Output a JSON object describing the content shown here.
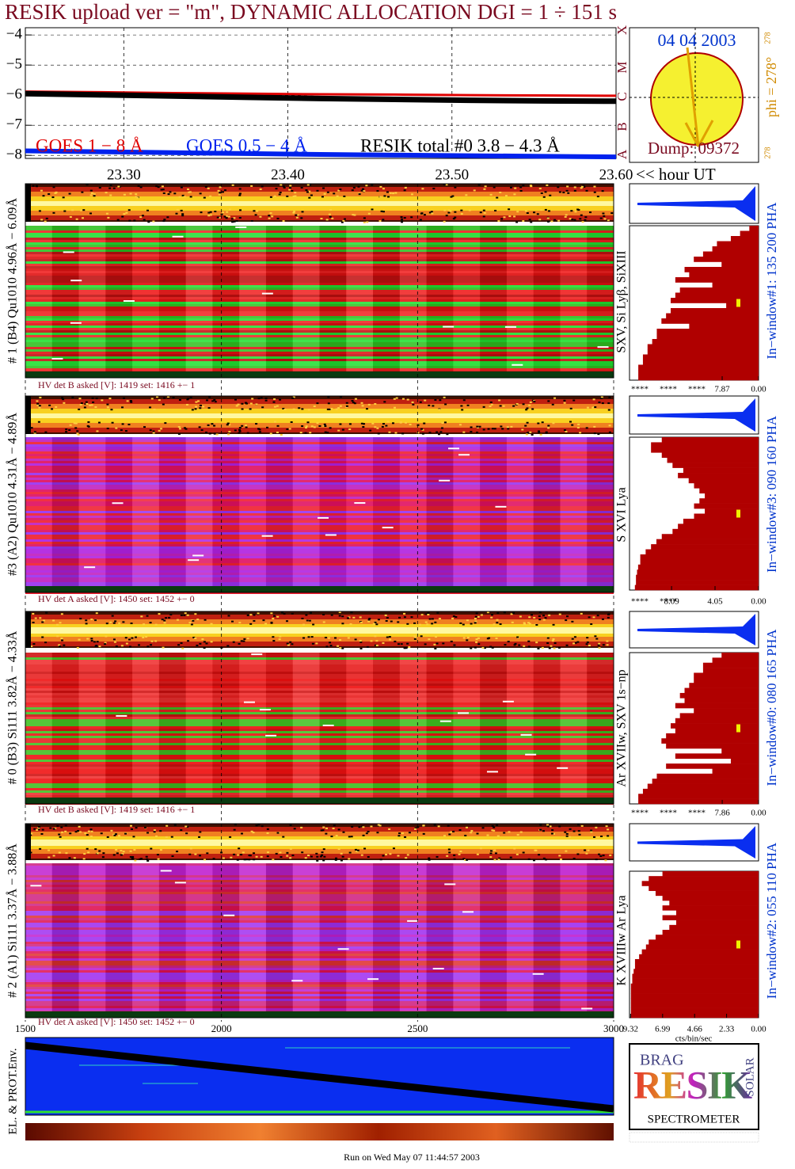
{
  "title": "RESIK upload ver = \"m\", DYNAMIC ALLOCATION  DGI =   1 ÷ 151 s",
  "chart_data": [
    {
      "type": "line",
      "x": [
        23.24,
        23.285,
        23.33,
        23.375,
        23.42,
        23.465,
        23.51,
        23.555,
        23.6
      ],
      "xlim": [
        23.24,
        23.6
      ],
      "xticks": [
        {
          "value": 23.3,
          "label": "23.30"
        },
        {
          "value": 23.4,
          "label": "23.40"
        },
        {
          "value": 23.5,
          "label": "23.50"
        },
        {
          "value": 23.6,
          "label": "23.60"
        }
      ],
      "x_label": "<< hour UT",
      "ylim": [
        -3.76,
        -8.1
      ],
      "yticks": [
        {
          "value": -4,
          "label": "−4"
        },
        {
          "value": -5,
          "label": "−5"
        },
        {
          "value": -6,
          "label": "−6"
        },
        {
          "value": -7,
          "label": "−7"
        },
        {
          "value": -8,
          "label": "−8"
        }
      ],
      "grid": true,
      "series": [
        {
          "name": "GOES 1 − 8 Å",
          "color": "#e00000",
          "values": [
            -5.88,
            -5.9,
            -5.93,
            -5.95,
            -5.97,
            -5.98,
            -6.0,
            -6.01,
            -6.02
          ]
        },
        {
          "name": "GOES 0.5 − 4 Å",
          "color": "#0022ee",
          "values": [
            -7.85,
            -7.88,
            -7.91,
            -7.94,
            -7.97,
            -7.99,
            -8.01,
            -8.03,
            -8.05
          ]
        },
        {
          "name": "RESIK total #0  3.8 − 4.3 Å",
          "color": "#000000",
          "values": [
            -5.95,
            -5.99,
            -6.03,
            -6.07,
            -6.11,
            -6.14,
            -6.17,
            -6.19,
            -6.2
          ]
        }
      ]
    },
    {
      "type": "spectrogram",
      "detector_label": "# 1 (B4) Qu1010 4.96Å − 6.09Å",
      "hv_label": "HV det B asked [V]:  1419 set:  1416 +−   1",
      "lines_label": "SXV, Si Lyβ, SiXIII",
      "window_label": "In−window#1:  135 200 PHA",
      "colors": [
        "#e01010",
        "#f02020",
        "#30c020",
        "#20e030",
        "#c01010"
      ],
      "profile": {
        "type": "bar",
        "color": "#b00000",
        "xlim": [
          27.9,
          0
        ],
        "values": [
          2,
          4,
          6,
          9,
          10,
          12,
          14,
          8,
          16,
          15,
          18,
          10,
          17,
          18,
          19,
          7,
          19,
          20,
          21,
          15,
          22,
          22,
          23,
          24,
          24,
          25,
          25,
          26,
          26,
          26
        ],
        "xticks": [
          {
            "value": 7.87,
            "label": "7.87"
          },
          {
            "value": 0,
            "label": "0.00"
          }
        ],
        "overflow_tick_labels": [
          "****",
          "****",
          "****"
        ]
      }
    },
    {
      "type": "spectrogram",
      "detector_label": "#3 (A2) Qu1010  4.31Å − 4.89Å",
      "hv_label": "HV det A asked [V]:  1450 set:  1452 +−   0",
      "lines_label": "S XVI Lya",
      "window_label": "In−window#3:  090 160 PHA",
      "colors": [
        "#b020e0",
        "#9a30f0",
        "#e01060",
        "#c020c0",
        "#f02030"
      ],
      "profile": {
        "type": "bar",
        "color": "#b00000",
        "xlim": [
          12,
          0
        ],
        "values": [
          9,
          10,
          10,
          9,
          8.5,
          8,
          7,
          7.5,
          6.5,
          6,
          5.5,
          5,
          5.5,
          6,
          5,
          6,
          7,
          7.5,
          8,
          9,
          9.5,
          10,
          10.5,
          11,
          11,
          11.2,
          11.3,
          11.4,
          11.4,
          11.5
        ],
        "xticks": [
          {
            "value": 8.09,
            "label": "8.09"
          },
          {
            "value": 4.05,
            "label": "4.05"
          },
          {
            "value": 0,
            "label": "0.00"
          }
        ],
        "overflow_tick_labels": [
          "****",
          "****"
        ]
      }
    },
    {
      "type": "spectrogram",
      "detector_label": "# 0 (B3) Si111  3.82Å − 4.33Å",
      "hv_label": "HV det B asked [V]:  1419 set:  1416 +−   1",
      "lines_label": "Ar XVIIw,  SXV 1s−np",
      "window_label": "In−window#0:  080 165 PHA",
      "colors": [
        "#f01010",
        "#e82020",
        "#f03030",
        "#40c020",
        "#d01010"
      ],
      "profile": {
        "type": "bar",
        "color": "#b00000",
        "xlim": [
          27.9,
          0
        ],
        "values": [
          8,
          10,
          12,
          12,
          14,
          14,
          15,
          16,
          17,
          16,
          18,
          14,
          17,
          18,
          19,
          18,
          20,
          21,
          20,
          8,
          18,
          6,
          20,
          10,
          22,
          23,
          24,
          25,
          26,
          26
        ],
        "xticks": [
          {
            "value": 7.86,
            "label": "7.86"
          },
          {
            "value": 0,
            "label": "0.00"
          }
        ],
        "overflow_tick_labels": [
          "****",
          "****",
          "****"
        ]
      }
    },
    {
      "type": "spectrogram",
      "detector_label": "# 2 (A1) Si111  3.37Å − 3.88Å",
      "hv_label": "HV det A asked [V]:  1450 set:  1452 +−   0",
      "lines_label": "K XVIIIw  Ar Lya",
      "window_label": "In−window#2:  055 110 PHA",
      "colors": [
        "#c020d0",
        "#a030f0",
        "#e01050",
        "#d02080",
        "#e03030"
      ],
      "profile": {
        "type": "bar",
        "color": "#b00000",
        "xlim": [
          9.4,
          0
        ],
        "values": [
          7,
          8,
          8.5,
          8,
          7.5,
          7,
          6.5,
          7,
          6,
          7,
          6,
          6.5,
          7,
          7.5,
          8,
          8.2,
          8.5,
          8.7,
          9,
          9,
          9.1,
          9.2,
          9.2,
          9.3,
          9.3,
          9.3,
          9.3,
          9.3,
          9.3,
          9.3
        ],
        "xticks": [
          {
            "value": 9.32,
            "label": "9.32"
          },
          {
            "value": 6.99,
            "label": "6.99"
          },
          {
            "value": 4.66,
            "label": "4.66"
          },
          {
            "value": 2.33,
            "label": "2.33"
          },
          {
            "value": 0,
            "label": "0.00"
          }
        ],
        "overflow_tick_labels": [],
        "x_label": "cts/bin/sec"
      }
    },
    {
      "type": "frame-axis",
      "xlim": [
        1500,
        3000
      ],
      "xticks": [
        1500,
        2000,
        2500,
        3000
      ],
      "label": "EL. & PROT.Env."
    }
  ],
  "sun_panel": {
    "date": "04 04 2003",
    "classes": [
      "X",
      "M",
      "C",
      "B",
      "A"
    ],
    "phi": "phi = 278°",
    "phi_sup": "278",
    "phi_bottom": "278",
    "dump": "Dump: 09372"
  },
  "logo": {
    "top": "BRAG",
    "main": "RESIK",
    "side": "SOLAR",
    "bottom": "SPECTROMETER"
  },
  "footer": "Run on Wed May 07 11:44:57 2003"
}
